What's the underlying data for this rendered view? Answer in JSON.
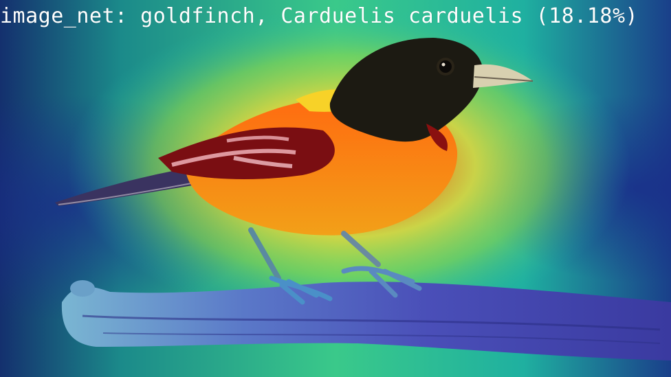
{
  "overlay": {
    "caption": "image_net: goldfinch, Carduelis carduelis (18.18%)",
    "prediction": {
      "dataset": "image_net",
      "label": "goldfinch, Carduelis carduelis",
      "confidence_percent": 18.18
    }
  },
  "image": {
    "subject": "bird perched on branch",
    "overlay_type": "heatmap",
    "colormap": [
      "#1b2a8a",
      "#1e6fb5",
      "#21b8a8",
      "#8fd84a",
      "#f2e23a",
      "#f57c1e",
      "#c81e12"
    ]
  }
}
